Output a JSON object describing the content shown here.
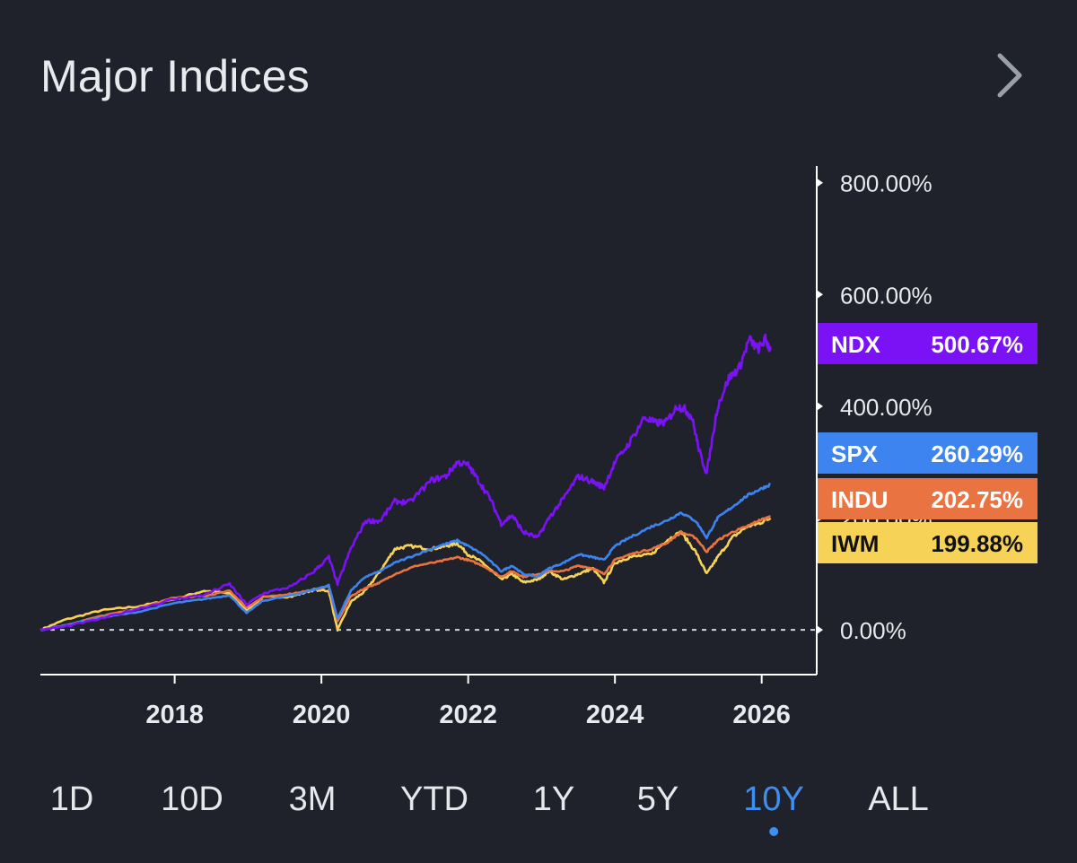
{
  "header": {
    "title": "Major Indices",
    "more_icon": "chevron-right-icon"
  },
  "colors": {
    "background": "#1f222a",
    "axis": "#ffffff",
    "NDX": "#7b12f5",
    "SPX": "#3d84f0",
    "INDU": "#ea7342",
    "IWM": "#f6d257",
    "active_tab": "#3f8ef0"
  },
  "chart_data": {
    "type": "line",
    "title": "",
    "xlabel": "",
    "ylabel": "",
    "xlim": [
      2016.17,
      2026.75
    ],
    "ylim": [
      -80,
      830
    ],
    "x_ticks": [
      2018,
      2020,
      2022,
      2024,
      2026
    ],
    "x_tick_labels": [
      "2018",
      "2020",
      "2022",
      "2024",
      "2026"
    ],
    "y_ticks": [
      0,
      200,
      400,
      600,
      800
    ],
    "y_tick_labels": [
      "0.00%",
      "200.00%",
      "400.00%",
      "600.00%",
      "800.00%"
    ],
    "baseline": 0,
    "grid": false,
    "legend": "right-axis-badges",
    "series": [
      {
        "name": "NDX",
        "last_label": "500.67%",
        "points": [
          [
            2016.17,
            0
          ],
          [
            2016.5,
            6
          ],
          [
            2017.0,
            20
          ],
          [
            2017.5,
            38
          ],
          [
            2018.0,
            55
          ],
          [
            2018.4,
            63
          ],
          [
            2018.75,
            82
          ],
          [
            2018.98,
            45
          ],
          [
            2019.2,
            65
          ],
          [
            2019.6,
            78
          ],
          [
            2019.9,
            105
          ],
          [
            2020.1,
            130
          ],
          [
            2020.22,
            82
          ],
          [
            2020.4,
            145
          ],
          [
            2020.6,
            195
          ],
          [
            2020.8,
            195
          ],
          [
            2021.0,
            230
          ],
          [
            2021.2,
            228
          ],
          [
            2021.5,
            268
          ],
          [
            2021.7,
            275
          ],
          [
            2021.85,
            300
          ],
          [
            2022.0,
            295
          ],
          [
            2022.15,
            265
          ],
          [
            2022.3,
            235
          ],
          [
            2022.45,
            190
          ],
          [
            2022.6,
            205
          ],
          [
            2022.75,
            175
          ],
          [
            2022.95,
            165
          ],
          [
            2023.1,
            200
          ],
          [
            2023.3,
            235
          ],
          [
            2023.5,
            275
          ],
          [
            2023.7,
            265
          ],
          [
            2023.85,
            255
          ],
          [
            2024.0,
            300
          ],
          [
            2024.2,
            335
          ],
          [
            2024.4,
            380
          ],
          [
            2024.55,
            370
          ],
          [
            2024.7,
            372
          ],
          [
            2024.85,
            400
          ],
          [
            2024.95,
            395
          ],
          [
            2025.05,
            380
          ],
          [
            2025.15,
            320
          ],
          [
            2025.25,
            280
          ],
          [
            2025.4,
            400
          ],
          [
            2025.55,
            450
          ],
          [
            2025.7,
            470
          ],
          [
            2025.83,
            520
          ],
          [
            2025.95,
            502
          ],
          [
            2026.05,
            520
          ],
          [
            2026.12,
            500.67
          ]
        ]
      },
      {
        "name": "SPX",
        "last_label": "260.29%",
        "points": [
          [
            2016.17,
            0
          ],
          [
            2016.5,
            8
          ],
          [
            2017.0,
            22
          ],
          [
            2017.5,
            32
          ],
          [
            2018.0,
            48
          ],
          [
            2018.4,
            55
          ],
          [
            2018.75,
            62
          ],
          [
            2018.98,
            30
          ],
          [
            2019.2,
            52
          ],
          [
            2019.6,
            62
          ],
          [
            2019.9,
            72
          ],
          [
            2020.1,
            80
          ],
          [
            2020.22,
            20
          ],
          [
            2020.4,
            70
          ],
          [
            2020.6,
            95
          ],
          [
            2020.8,
            105
          ],
          [
            2021.0,
            120
          ],
          [
            2021.3,
            135
          ],
          [
            2021.6,
            150
          ],
          [
            2021.85,
            160
          ],
          [
            2022.0,
            150
          ],
          [
            2022.2,
            135
          ],
          [
            2022.45,
            105
          ],
          [
            2022.6,
            115
          ],
          [
            2022.75,
            100
          ],
          [
            2022.95,
            95
          ],
          [
            2023.1,
            110
          ],
          [
            2023.3,
            120
          ],
          [
            2023.5,
            135
          ],
          [
            2023.7,
            130
          ],
          [
            2023.85,
            125
          ],
          [
            2024.0,
            150
          ],
          [
            2024.2,
            165
          ],
          [
            2024.5,
            185
          ],
          [
            2024.7,
            195
          ],
          [
            2024.9,
            210
          ],
          [
            2025.1,
            195
          ],
          [
            2025.25,
            165
          ],
          [
            2025.4,
            200
          ],
          [
            2025.6,
            220
          ],
          [
            2025.8,
            240
          ],
          [
            2025.95,
            250
          ],
          [
            2026.12,
            260.29
          ]
        ]
      },
      {
        "name": "INDU",
        "last_label": "202.75%",
        "points": [
          [
            2016.17,
            0
          ],
          [
            2016.5,
            8
          ],
          [
            2017.0,
            25
          ],
          [
            2017.5,
            38
          ],
          [
            2018.0,
            58
          ],
          [
            2018.4,
            60
          ],
          [
            2018.75,
            70
          ],
          [
            2018.98,
            40
          ],
          [
            2019.2,
            58
          ],
          [
            2019.6,
            65
          ],
          [
            2019.9,
            72
          ],
          [
            2020.1,
            78
          ],
          [
            2020.22,
            15
          ],
          [
            2020.4,
            60
          ],
          [
            2020.6,
            75
          ],
          [
            2020.8,
            85
          ],
          [
            2021.0,
            100
          ],
          [
            2021.3,
            115
          ],
          [
            2021.6,
            122
          ],
          [
            2021.85,
            130
          ],
          [
            2022.0,
            125
          ],
          [
            2022.2,
            115
          ],
          [
            2022.45,
            95
          ],
          [
            2022.6,
            105
          ],
          [
            2022.75,
            95
          ],
          [
            2022.95,
            100
          ],
          [
            2023.1,
            105
          ],
          [
            2023.3,
            105
          ],
          [
            2023.5,
            115
          ],
          [
            2023.7,
            110
          ],
          [
            2023.85,
            100
          ],
          [
            2024.0,
            125
          ],
          [
            2024.2,
            135
          ],
          [
            2024.5,
            145
          ],
          [
            2024.7,
            155
          ],
          [
            2024.9,
            175
          ],
          [
            2025.1,
            165
          ],
          [
            2025.25,
            140
          ],
          [
            2025.4,
            160
          ],
          [
            2025.6,
            175
          ],
          [
            2025.8,
            185
          ],
          [
            2025.95,
            195
          ],
          [
            2026.12,
            202.75
          ]
        ]
      },
      {
        "name": "IWM",
        "last_label": "199.88%",
        "points": [
          [
            2016.17,
            0
          ],
          [
            2016.5,
            18
          ],
          [
            2017.0,
            35
          ],
          [
            2017.5,
            42
          ],
          [
            2018.0,
            55
          ],
          [
            2018.4,
            70
          ],
          [
            2018.75,
            65
          ],
          [
            2018.98,
            35
          ],
          [
            2019.2,
            58
          ],
          [
            2019.6,
            60
          ],
          [
            2019.9,
            72
          ],
          [
            2020.1,
            70
          ],
          [
            2020.22,
            0
          ],
          [
            2020.4,
            50
          ],
          [
            2020.6,
            70
          ],
          [
            2020.8,
            105
          ],
          [
            2021.0,
            145
          ],
          [
            2021.2,
            150
          ],
          [
            2021.5,
            145
          ],
          [
            2021.7,
            150
          ],
          [
            2021.85,
            155
          ],
          [
            2022.0,
            135
          ],
          [
            2022.2,
            120
          ],
          [
            2022.45,
            90
          ],
          [
            2022.6,
            100
          ],
          [
            2022.75,
            85
          ],
          [
            2022.95,
            90
          ],
          [
            2023.1,
            105
          ],
          [
            2023.3,
            90
          ],
          [
            2023.5,
            100
          ],
          [
            2023.7,
            110
          ],
          [
            2023.85,
            85
          ],
          [
            2024.0,
            120
          ],
          [
            2024.2,
            130
          ],
          [
            2024.5,
            135
          ],
          [
            2024.7,
            160
          ],
          [
            2024.9,
            175
          ],
          [
            2025.1,
            140
          ],
          [
            2025.25,
            100
          ],
          [
            2025.4,
            130
          ],
          [
            2025.6,
            165
          ],
          [
            2025.8,
            185
          ],
          [
            2025.95,
            190
          ],
          [
            2026.12,
            199.88
          ]
        ]
      }
    ]
  },
  "ranges": {
    "active": "10Y",
    "items": [
      "1D",
      "10D",
      "3M",
      "YTD",
      "1Y",
      "5Y",
      "10Y",
      "ALL"
    ]
  }
}
